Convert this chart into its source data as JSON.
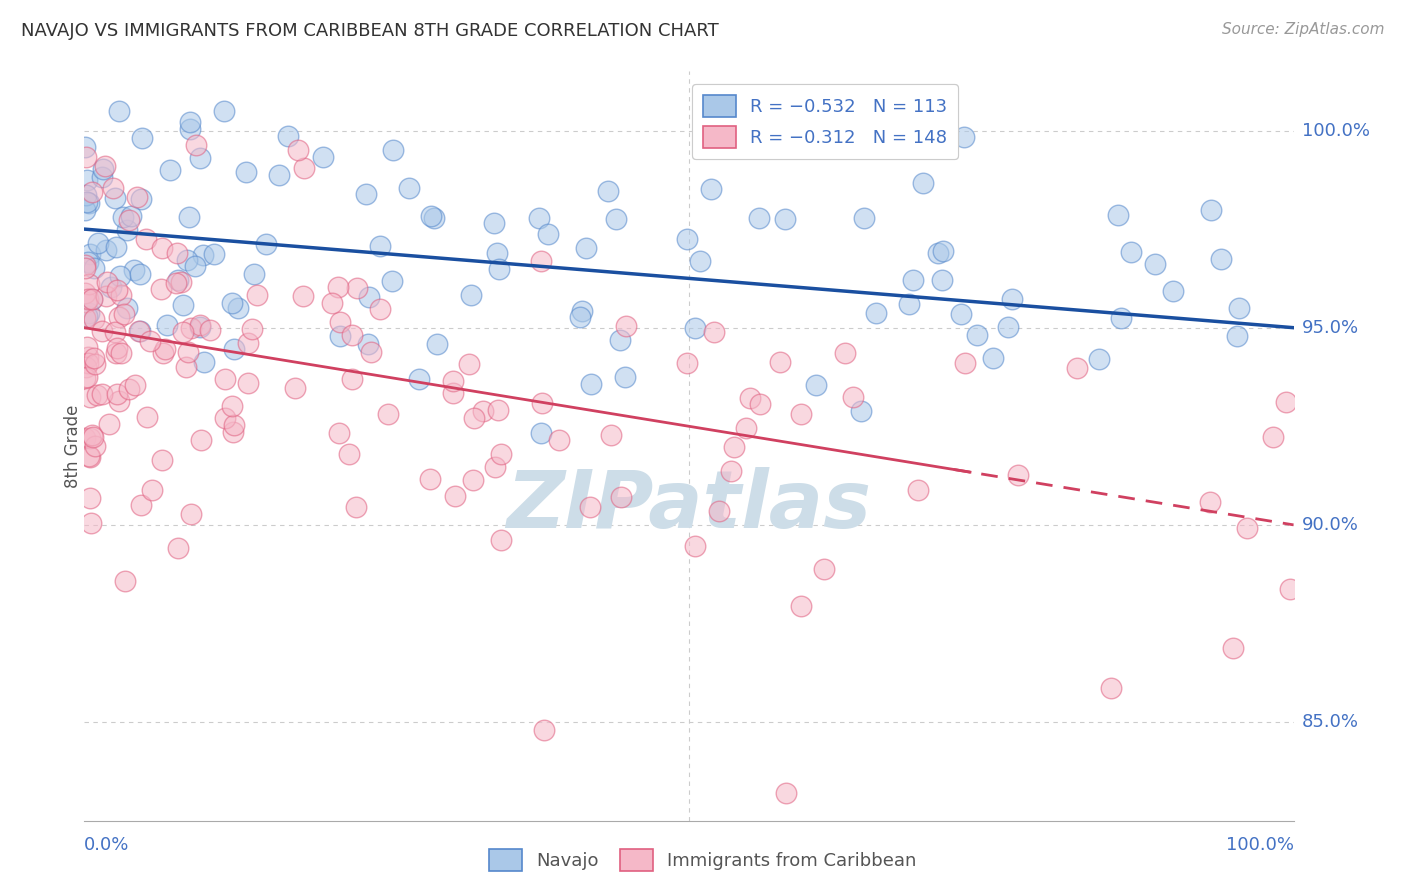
{
  "title": "NAVAJO VS IMMIGRANTS FROM CARIBBEAN 8TH GRADE CORRELATION CHART",
  "source": "Source: ZipAtlas.com",
  "ylabel": "8th Grade",
  "ytick_labels": [
    "100.0%",
    "95.0%",
    "90.0%",
    "85.0%"
  ],
  "ytick_values": [
    1.0,
    0.95,
    0.9,
    0.85
  ],
  "blue_R": -0.532,
  "blue_N": 113,
  "pink_R": -0.312,
  "pink_N": 148,
  "blue_scatter_color": "#aac8e8",
  "blue_edge_color": "#5588cc",
  "pink_scatter_color": "#f5b8c8",
  "pink_edge_color": "#e06080",
  "blue_line_color": "#1a4fa0",
  "pink_line_color": "#d04060",
  "watermark": "ZIPatlas",
  "watermark_color": "#cddde8",
  "background_color": "#ffffff",
  "grid_color": "#cccccc",
  "title_color": "#333333",
  "axis_label_color": "#4472c4",
  "legend_label_color": "#4472c4",
  "xlim": [
    0.0,
    1.0
  ],
  "ylim": [
    0.825,
    1.015
  ],
  "blue_trend_start_y": 0.975,
  "blue_trend_end_y": 0.95,
  "pink_trend_start_y": 0.95,
  "pink_trend_end_y": 0.9,
  "figsize": [
    14.06,
    8.92
  ],
  "dpi": 100
}
